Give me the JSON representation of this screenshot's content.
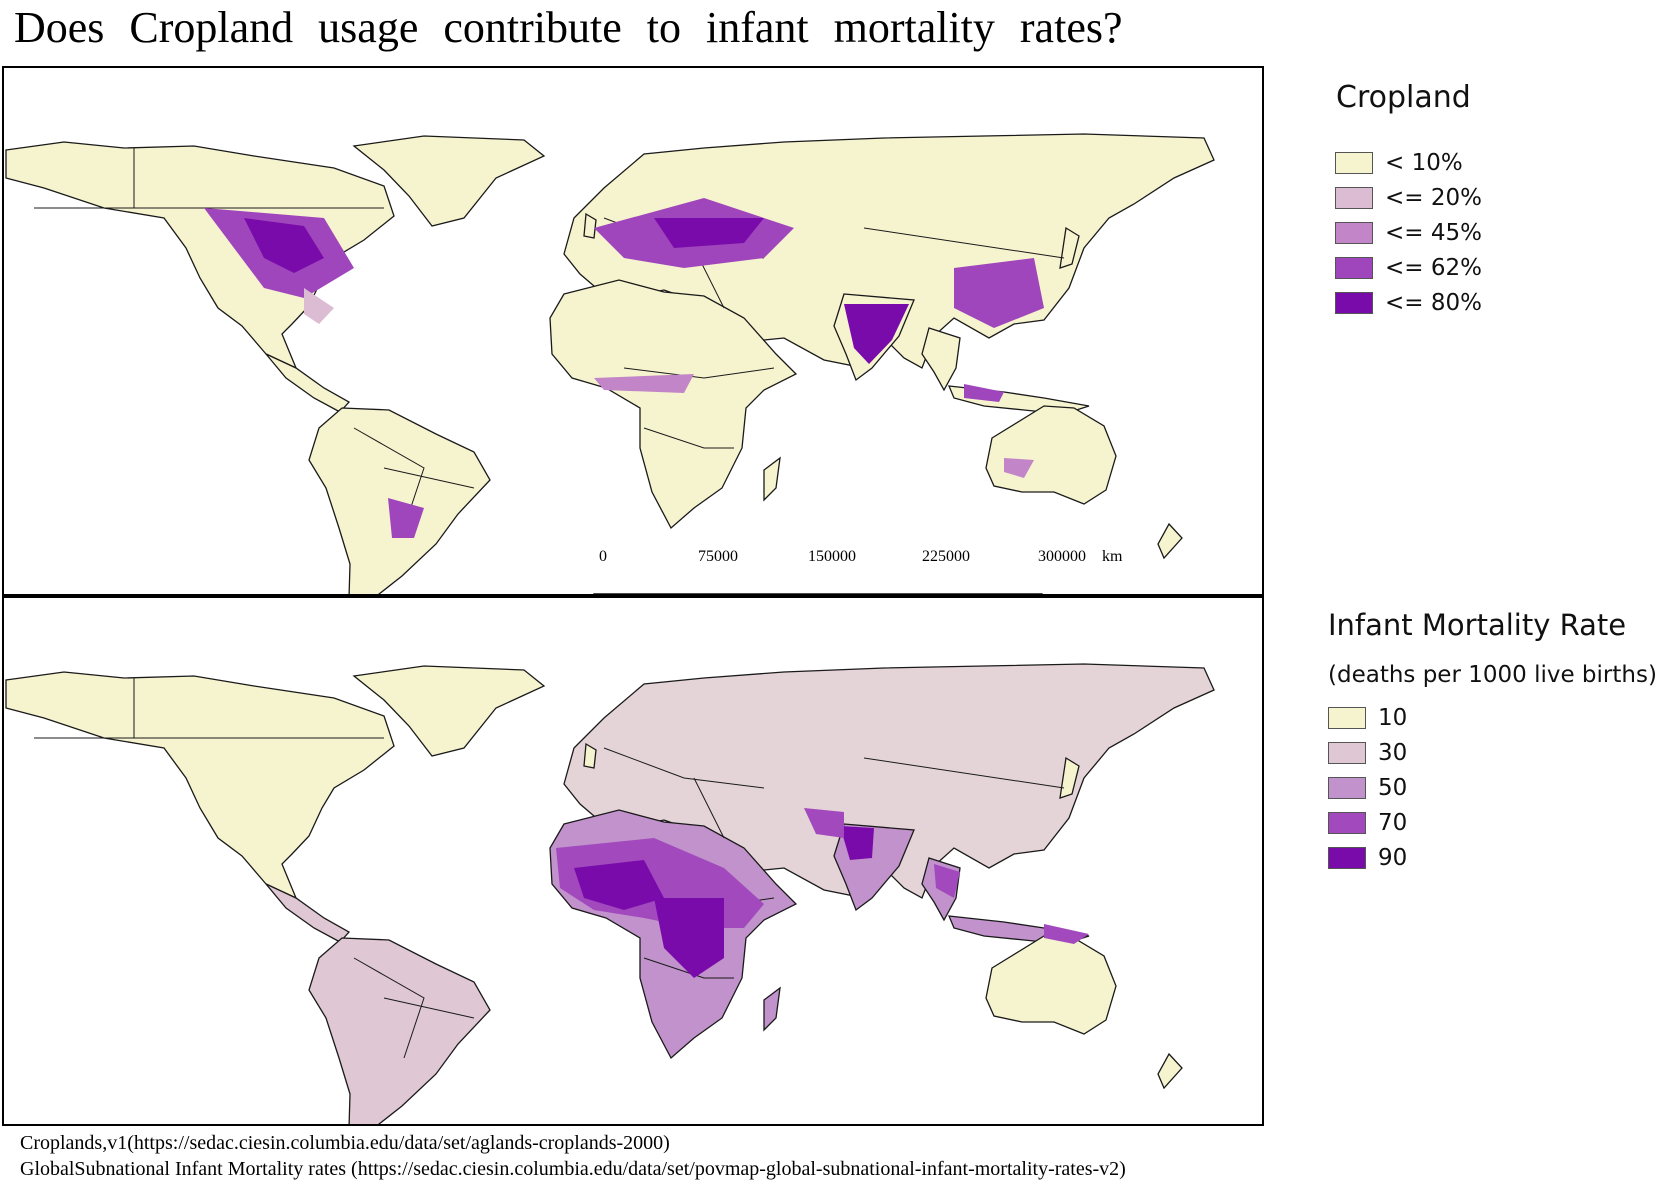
{
  "title": "Does Cropland usage contribute to infant mortality rates?",
  "colors": {
    "base": "#f6f3cf",
    "border": "#1a1a1a",
    "frame": "#000000"
  },
  "map1": {
    "legend_title": "Cropland",
    "legend": [
      {
        "label": "< 10%",
        "color": "#f6f3cf"
      },
      {
        "label": "<= 20%",
        "color": "#dcbcd3"
      },
      {
        "label": "<= 45%",
        "color": "#c185c8"
      },
      {
        "label": "<= 62%",
        "color": "#a046bc"
      },
      {
        "label": "<= 80%",
        "color": "#7a0bab"
      }
    ],
    "scale": {
      "ticks": [
        "0",
        "75000",
        "150000",
        "225000",
        "300000"
      ],
      "unit": "km"
    }
  },
  "map2": {
    "legend_title": "Infant Mortality Rate",
    "legend_subtitle": "(deaths per 1000 live births)",
    "legend": [
      {
        "label": "10",
        "color": "#f6f3cf"
      },
      {
        "label": "30",
        "color": "#dfc7d4"
      },
      {
        "label": "50",
        "color": "#c192cb"
      },
      {
        "label": "70",
        "color": "#a24abd"
      },
      {
        "label": "90",
        "color": "#7a0bab"
      }
    ]
  },
  "sources": [
    "Croplands,v1(https://sedac.ciesin.columbia.edu/data/set/aglands-croplands-2000)",
    "GlobalSubnational  Infant  Mortality  rates  (https://sedac.ciesin.columbia.edu/data/set/povmap-global-subnational-infant-mortality-rates-v2)"
  ]
}
